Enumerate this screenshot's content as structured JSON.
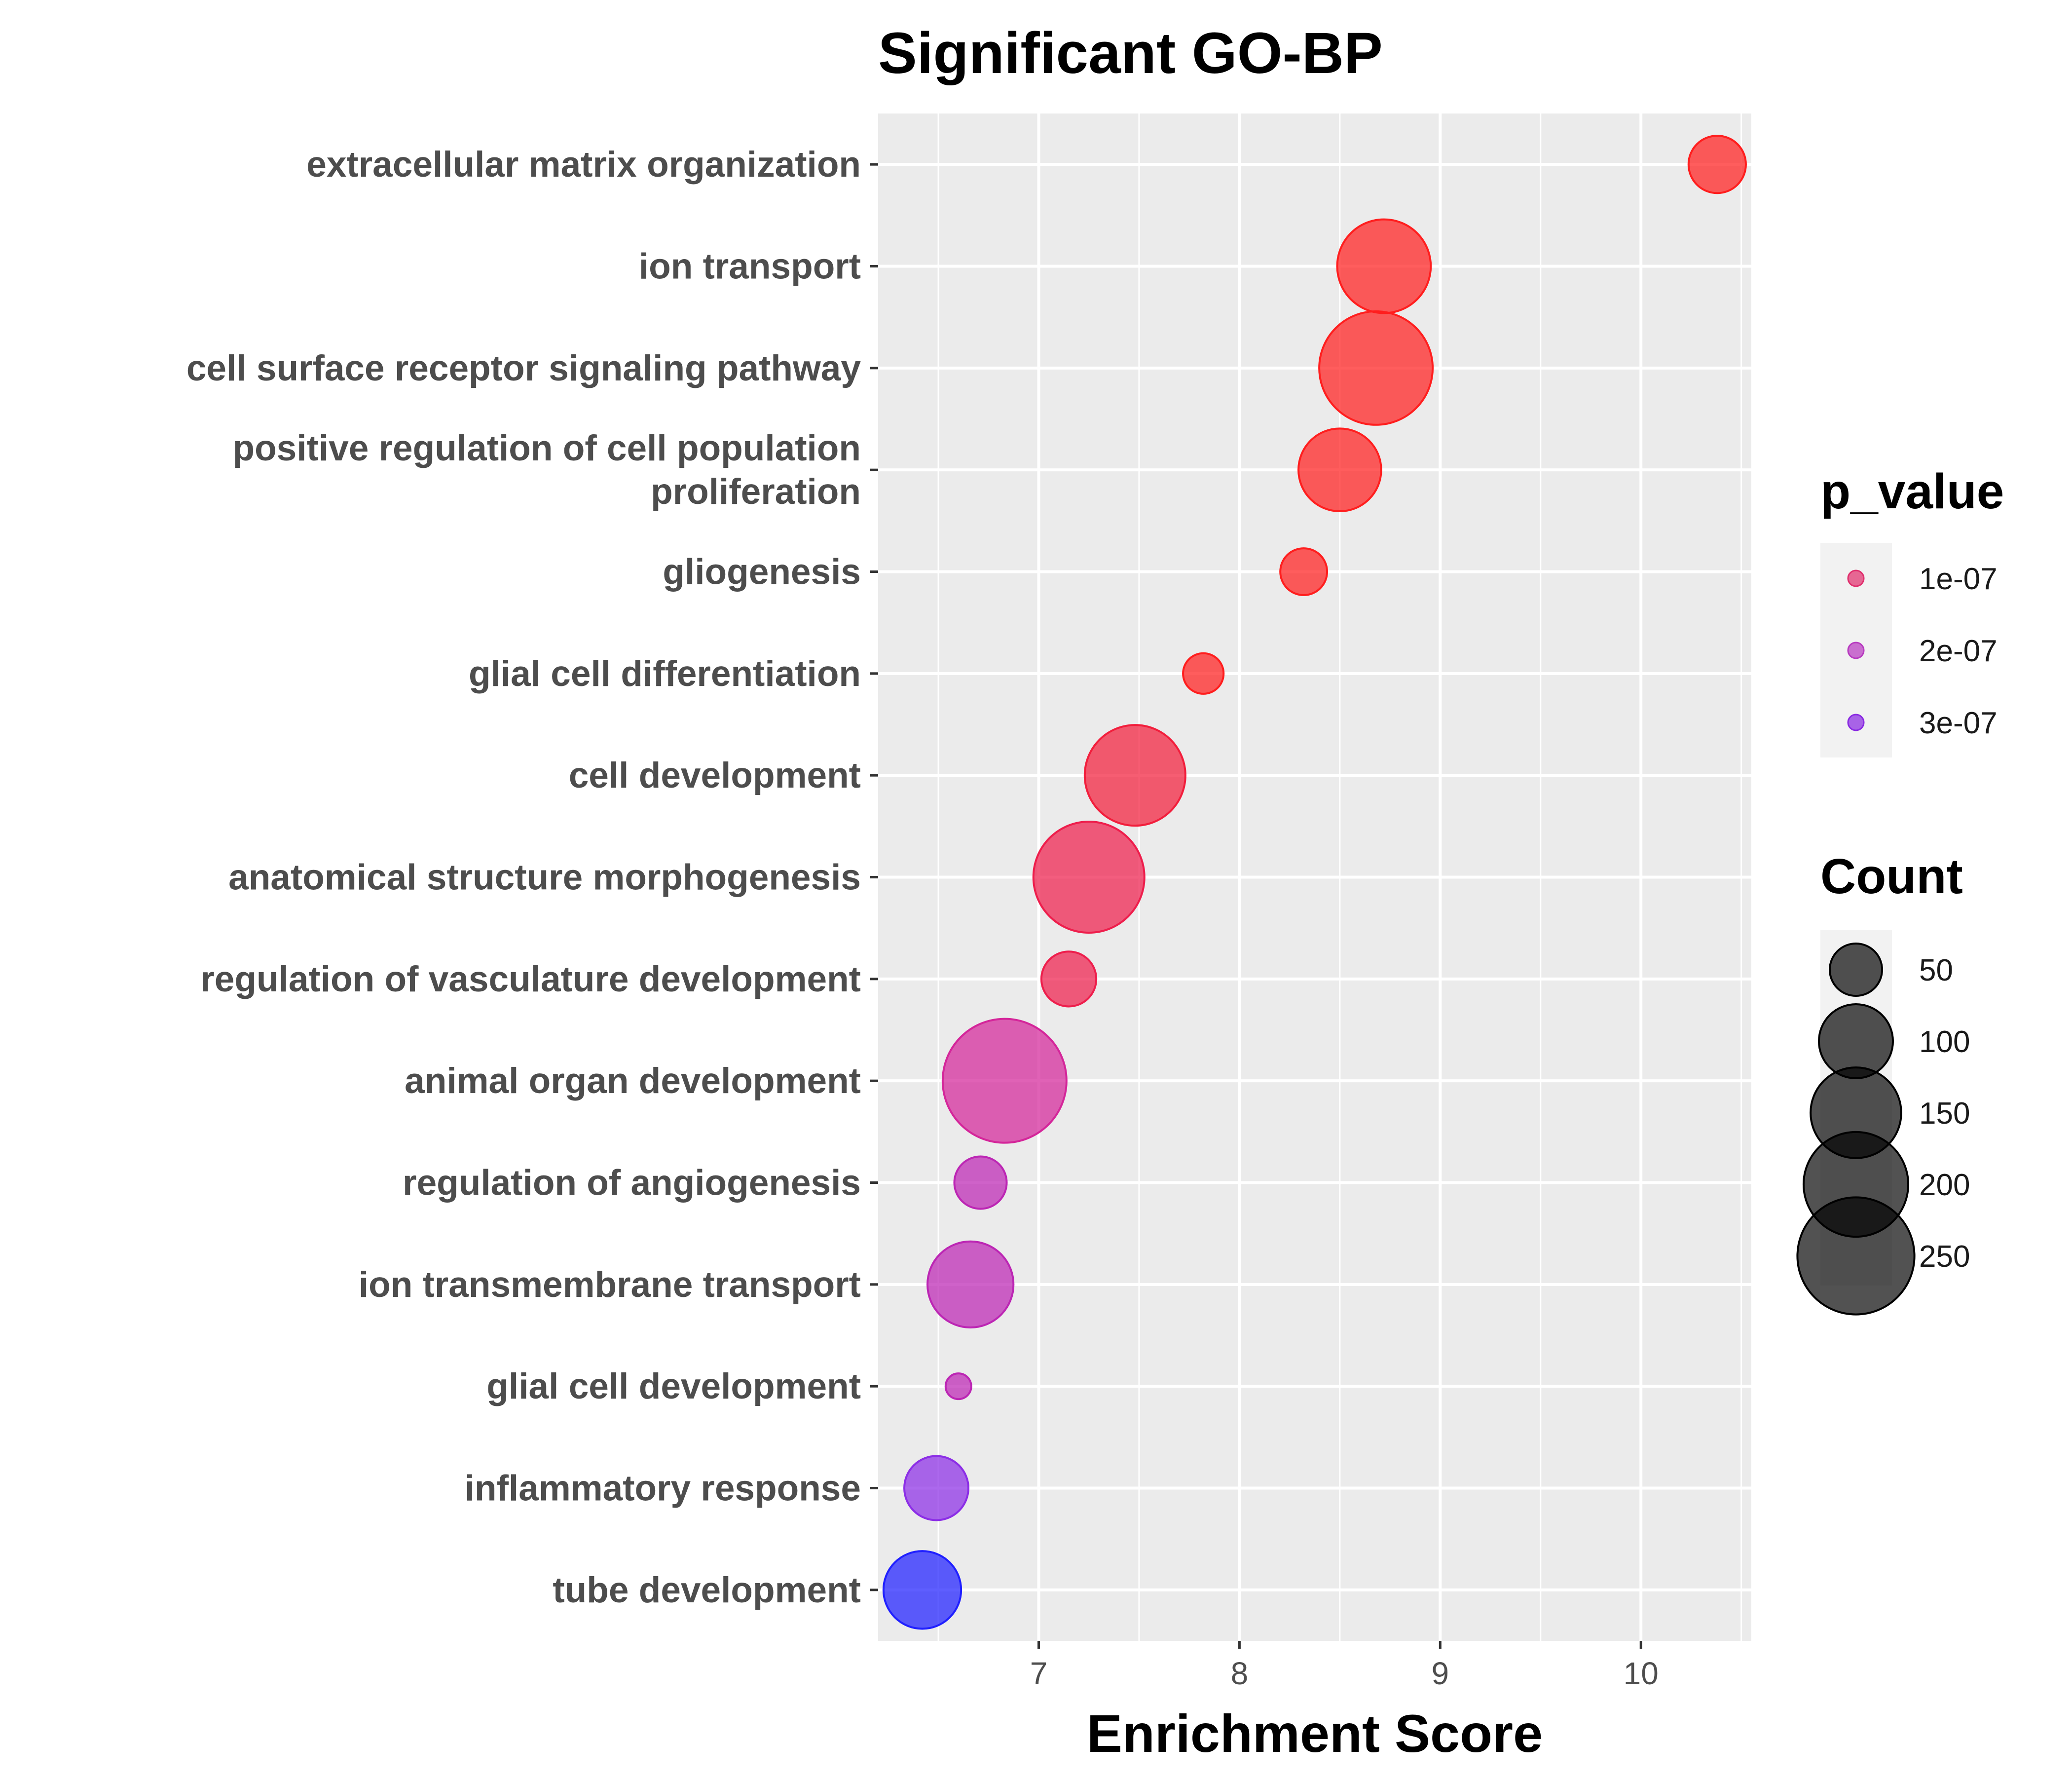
{
  "chart_data": {
    "type": "scatter",
    "title": "Significant GO-BP",
    "xlabel": "Enrichment Score",
    "ylabel": "",
    "xlim": [
      6.2,
      10.55
    ],
    "xticks": [
      7,
      8,
      9,
      10
    ],
    "grid": true,
    "legend_placement": "right",
    "color_legend": {
      "title": "p_value",
      "entries": [
        {
          "label": "1e-07",
          "value": 1e-07,
          "color": "#e0306e"
        },
        {
          "label": "2e-07",
          "value": 2e-07,
          "color": "#b83bc0"
        },
        {
          "label": "3e-07",
          "value": 3e-07,
          "color": "#8a2be2"
        }
      ]
    },
    "size_legend": {
      "title": "Count",
      "entries": [
        {
          "label": "50",
          "value": 50
        },
        {
          "label": "100",
          "value": 100
        },
        {
          "label": "150",
          "value": 150
        },
        {
          "label": "200",
          "value": 200
        },
        {
          "label": "250",
          "value": 250
        }
      ]
    },
    "points": [
      {
        "term": "extracellular matrix organization",
        "x": 10.38,
        "count": 60,
        "color": "#ff1e1e"
      },
      {
        "term": "ion transport",
        "x": 8.72,
        "count": 160,
        "color": "#ff1e1e"
      },
      {
        "term": "cell surface receptor signaling pathway",
        "x": 8.68,
        "count": 235,
        "color": "#ff1e1e"
      },
      {
        "term": "positive regulation of cell population proliferation",
        "x": 8.5,
        "count": 125,
        "color": "#ff1e1e"
      },
      {
        "term": "gliogenesis",
        "x": 8.32,
        "count": 40,
        "color": "#ff1e1e"
      },
      {
        "term": "glial cell differentiation",
        "x": 7.82,
        "count": 30,
        "color": "#ff1e1e"
      },
      {
        "term": "cell development",
        "x": 7.48,
        "count": 185,
        "color": "#f21e3c"
      },
      {
        "term": "anatomical structure morphogenesis",
        "x": 7.25,
        "count": 225,
        "color": "#ee1e4c"
      },
      {
        "term": "regulation of vasculature development",
        "x": 7.15,
        "count": 55,
        "color": "#ee1e4c"
      },
      {
        "term": "animal organ development",
        "x": 6.83,
        "count": 280,
        "color": "#d4269a"
      },
      {
        "term": "regulation of angiogenesis",
        "x": 6.71,
        "count": 50,
        "color": "#bc26b4"
      },
      {
        "term": "ion transmembrane transport",
        "x": 6.66,
        "count": 135,
        "color": "#bc26b4"
      },
      {
        "term": "glial cell development",
        "x": 6.6,
        "count": 12,
        "color": "#bc26b4"
      },
      {
        "term": "inflammatory response",
        "x": 6.49,
        "count": 75,
        "color": "#8c2ee6"
      },
      {
        "term": "tube development",
        "x": 6.42,
        "count": 110,
        "color": "#2020ff"
      }
    ],
    "label_lines": {
      "positive regulation of cell population proliferation": [
        "positive regulation of cell population",
        "proliferation"
      ]
    }
  }
}
